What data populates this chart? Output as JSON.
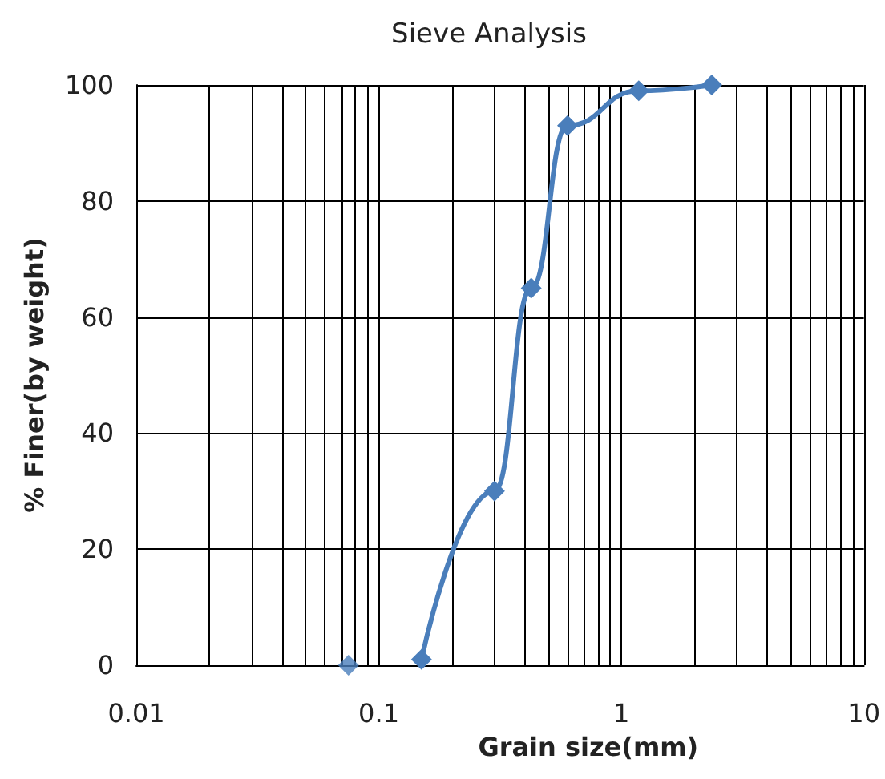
{
  "chart_data": {
    "type": "line",
    "title": "Sieve Analysis",
    "xlabel": "Grain size(mm)",
    "ylabel": "% Finer(by weight)",
    "log": "x",
    "xlim": [
      0.01,
      10
    ],
    "xticks": [
      0.01,
      0.1,
      1,
      10
    ],
    "ylim": [
      0,
      100
    ],
    "yticks": [
      0,
      20,
      40,
      60,
      80,
      100
    ],
    "grid": true,
    "marker": "diamond",
    "series": [
      {
        "type": "scatter",
        "color": "#4a7ebb",
        "x": [
          0.075
        ],
        "values": [
          0
        ]
      },
      {
        "color": "#4a7ebb",
        "x": [
          0.15,
          0.3,
          0.425,
          0.6,
          1.18,
          2.36
        ],
        "values": [
          1,
          30,
          65,
          93,
          99,
          100
        ]
      }
    ]
  }
}
